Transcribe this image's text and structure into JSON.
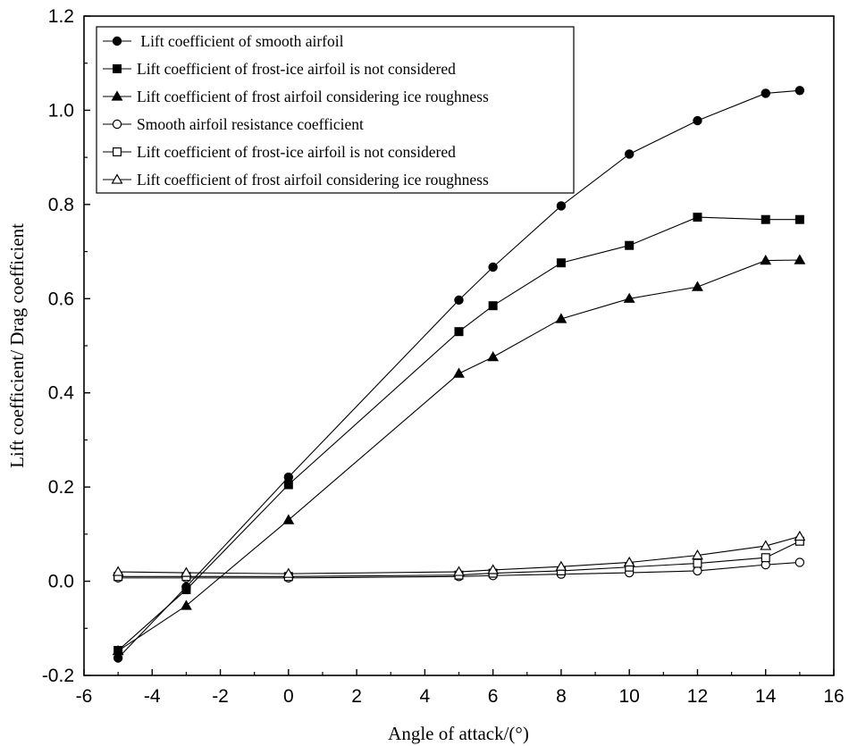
{
  "chart_data": {
    "type": "line",
    "xlabel": "Angle of attack/(°)",
    "ylabel": "Lift coefficient/ Drag coefficient",
    "xlim": [
      -6,
      16
    ],
    "ylim": [
      -0.2,
      1.2
    ],
    "xticks": [
      -6,
      -4,
      -2,
      0,
      2,
      4,
      6,
      8,
      10,
      12,
      14,
      16
    ],
    "yticks": [
      -0.2,
      0.0,
      0.2,
      0.4,
      0.6,
      0.8,
      1.0,
      1.2
    ],
    "xtick_labels": [
      "-6",
      "-4",
      "-2",
      "0",
      "2",
      "4",
      "6",
      "8",
      "10",
      "12",
      "14",
      "16"
    ],
    "ytick_labels": [
      "-0.2",
      "0.0",
      "0.2",
      "0.4",
      "0.6",
      "0.8",
      "1.0",
      "1.2"
    ],
    "grid": false,
    "legend_position": "top-left",
    "x": [
      -5,
      -3,
      0,
      5,
      6,
      8,
      10,
      12,
      14,
      15
    ],
    "series": [
      {
        "name": " Lift coefficient of smooth airfoil",
        "marker": "circle",
        "filled": true,
        "values": [
          -0.163,
          -0.012,
          0.221,
          0.597,
          0.667,
          0.797,
          0.907,
          0.978,
          1.036,
          1.042
        ]
      },
      {
        "name": "Lift coefficient of frost-ice airfoil is not considered",
        "marker": "square",
        "filled": true,
        "values": [
          -0.147,
          -0.018,
          0.205,
          0.53,
          0.585,
          0.676,
          0.713,
          0.773,
          0.768,
          0.768
        ]
      },
      {
        "name": "Lift coefficient of frost airfoil considering ice roughness",
        "marker": "triangle",
        "filled": true,
        "values": [
          -0.148,
          -0.052,
          0.13,
          0.441,
          0.476,
          0.557,
          0.6,
          0.625,
          0.681,
          0.682
        ]
      },
      {
        "name": "Smooth airfoil resistance coefficient",
        "marker": "circle",
        "filled": false,
        "values": [
          0.007,
          0.007,
          0.007,
          0.01,
          0.012,
          0.015,
          0.018,
          0.022,
          0.035,
          0.04
        ]
      },
      {
        "name": "Lift coefficient of frost-ice airfoil is not considered",
        "marker": "square",
        "filled": false,
        "values": [
          0.01,
          0.01,
          0.01,
          0.013,
          0.017,
          0.022,
          0.03,
          0.038,
          0.05,
          0.085
        ]
      },
      {
        "name": "Lift coefficient of frost airfoil considering ice roughness",
        "marker": "triangle",
        "filled": false,
        "values": [
          0.02,
          0.018,
          0.016,
          0.02,
          0.024,
          0.031,
          0.04,
          0.055,
          0.075,
          0.095
        ]
      }
    ],
    "colors": {
      "line": "#000000",
      "background": "#ffffff"
    }
  }
}
